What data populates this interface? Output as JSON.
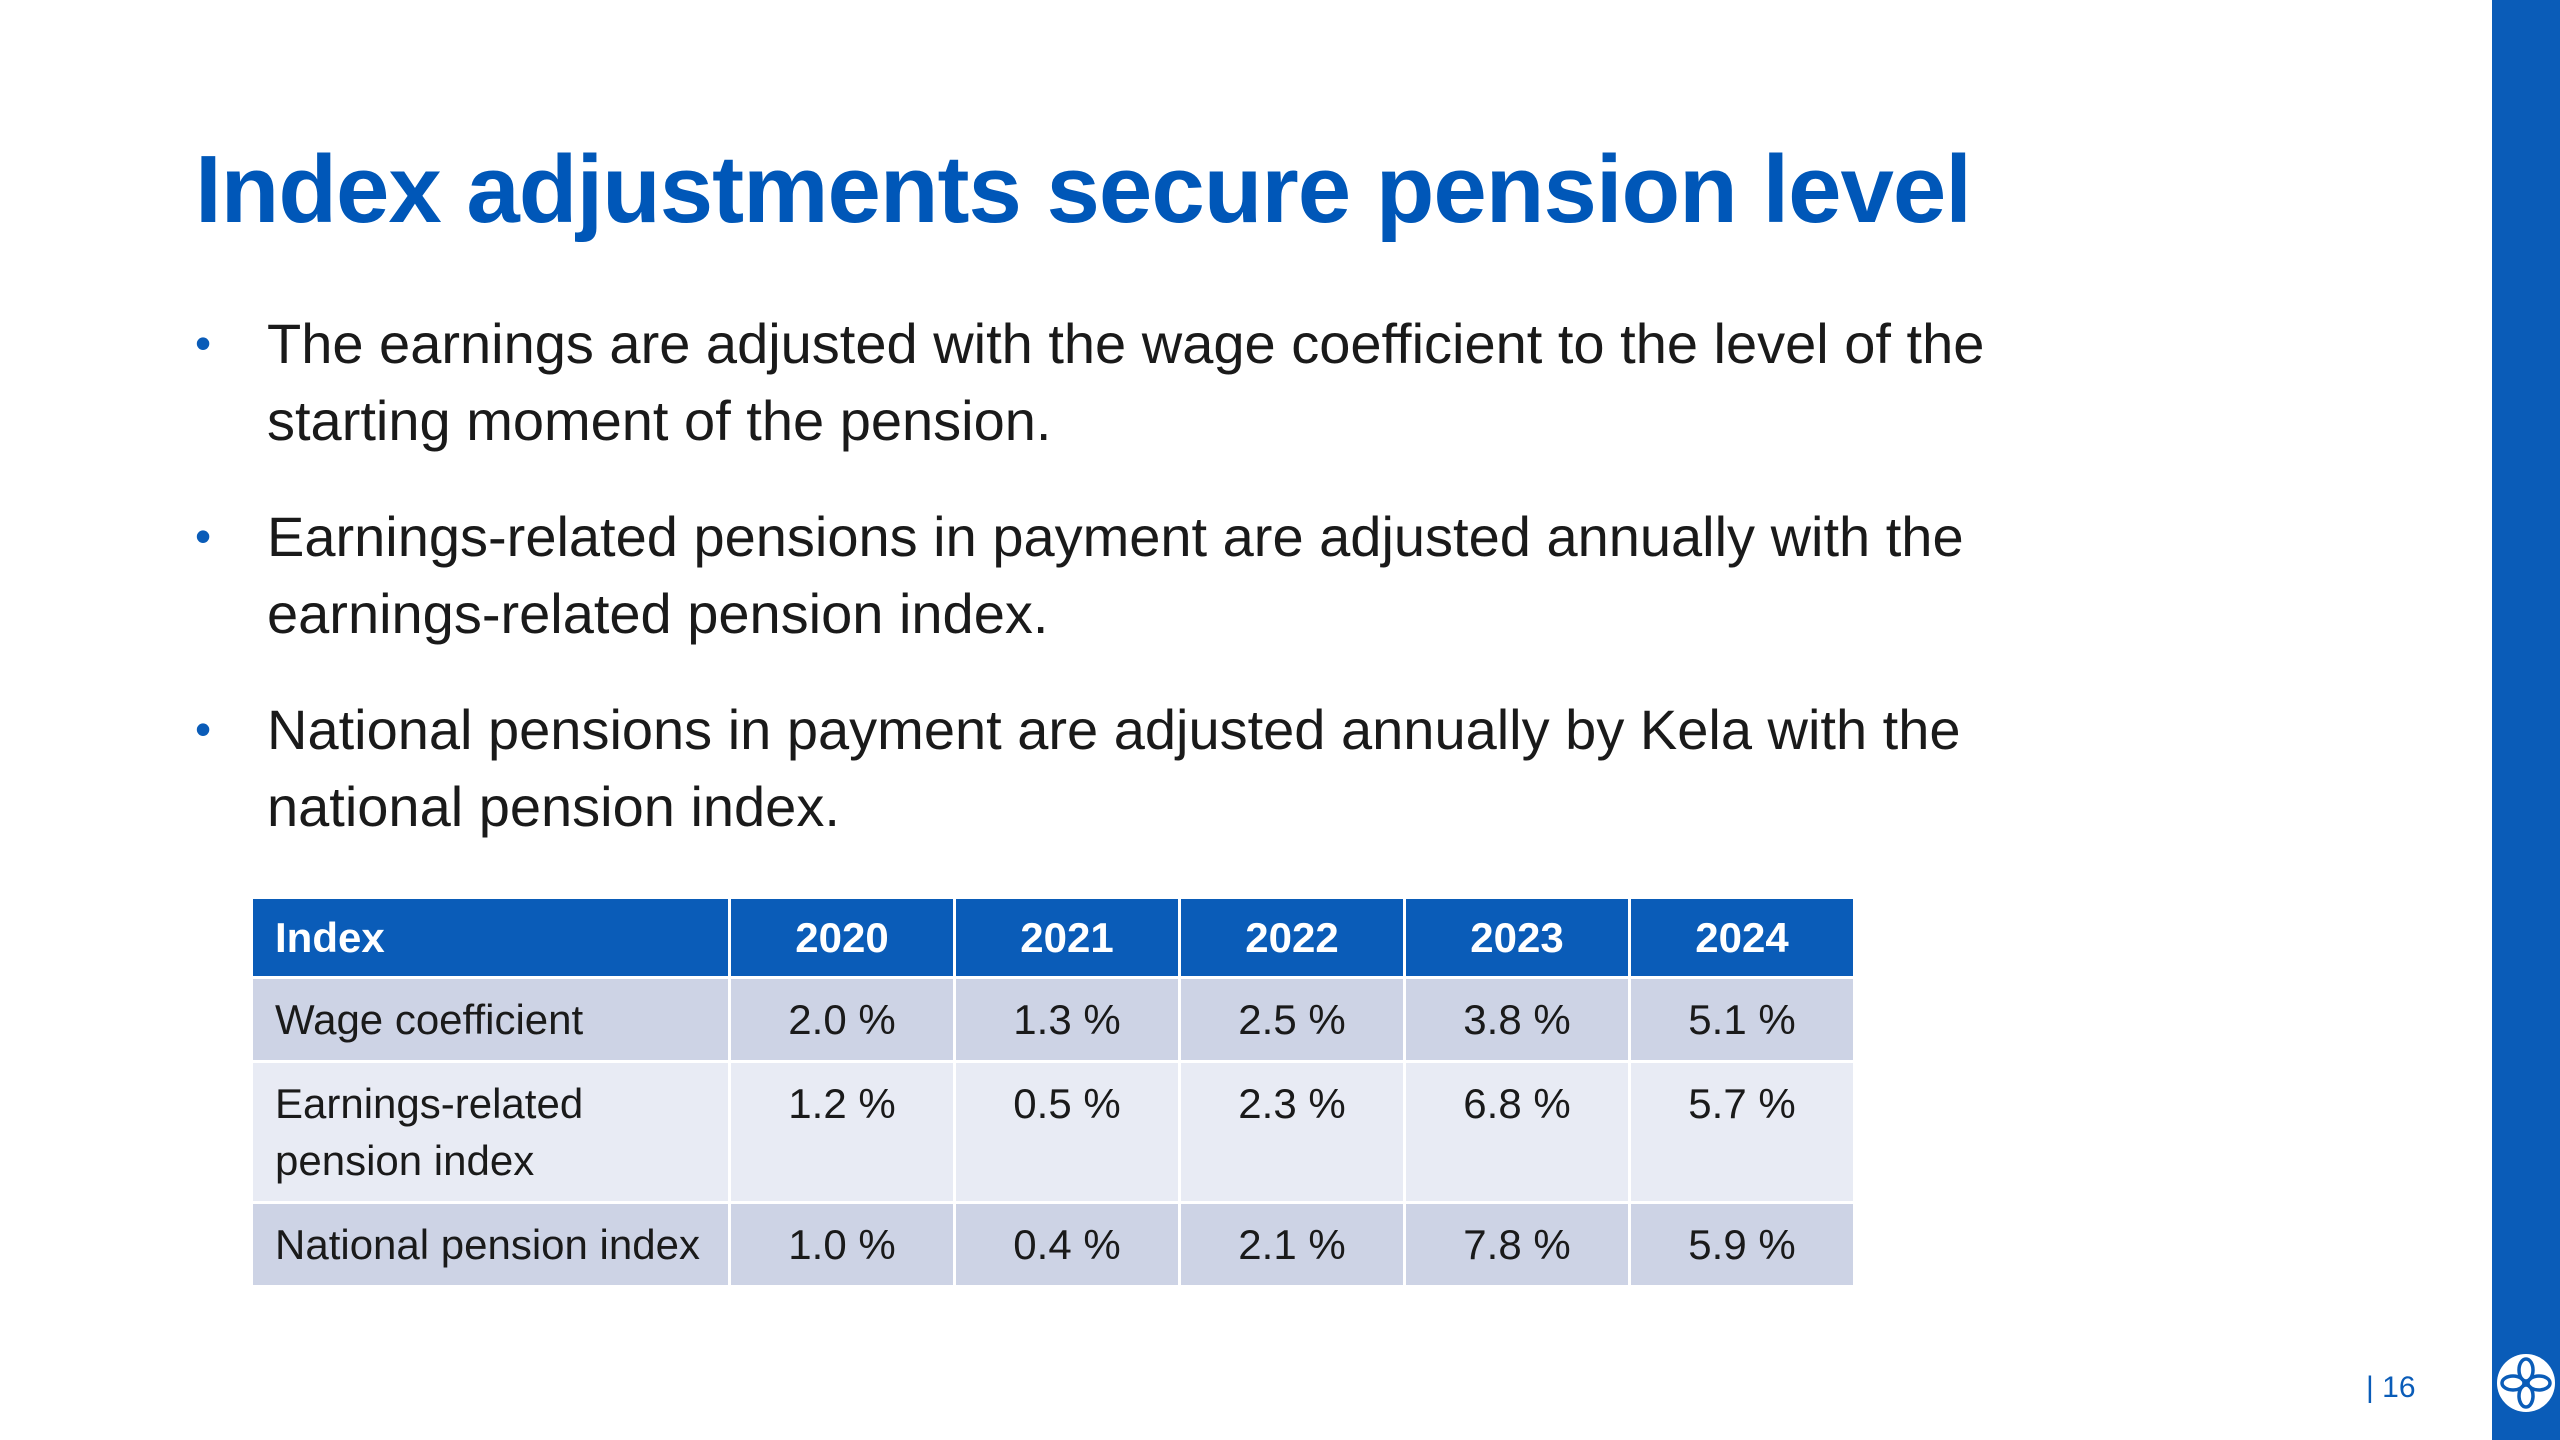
{
  "colors": {
    "title": "#0057b8",
    "accent_blue": "#0a5cb8",
    "header_bg": "#0a5cb8",
    "row_dark": "#cdd3e5",
    "row_light": "#e8ebf4"
  },
  "slide": {
    "title": "Index adjustments secure pension level",
    "bullets": [
      "The earnings are adjusted with the wage coefficient to the level of the starting moment of the pension.",
      "Earnings-related pensions in payment are adjusted annually with the earnings-related pension index.",
      "National pensions in payment are adjusted annually by Kela with the national pension index."
    ],
    "bullet_glyph": "•",
    "table": {
      "headers": [
        "Index",
        "2020",
        "2021",
        "2022",
        "2023",
        "2024"
      ],
      "rows": [
        {
          "name": "Wage coefficient",
          "values": [
            "2.0 %",
            "1.3 %",
            "2.5 %",
            "3.8 %",
            "5.1 %"
          ]
        },
        {
          "name": "Earnings-related pension index",
          "values": [
            "1.2 %",
            "0.5 %",
            "2.3 %",
            "6.8 %",
            "5.7 %"
          ]
        },
        {
          "name": "National pension index",
          "values": [
            "1.0 %",
            "0.4 %",
            "2.1 %",
            "7.8 %",
            "5.9 %"
          ]
        }
      ]
    },
    "page_number": "| 16",
    "logo_icon": "flower-logo-icon"
  }
}
